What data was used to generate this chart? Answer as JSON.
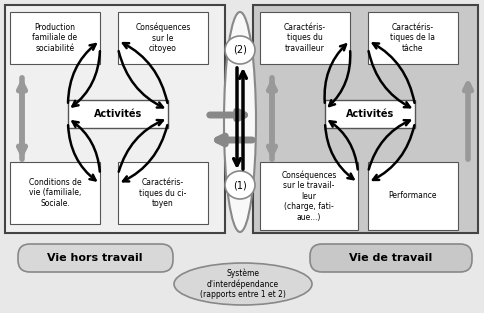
{
  "bg_color": "#e8e8e8",
  "left_panel_bg": "#f0f0f0",
  "right_panel_bg": "#c8c8c8",
  "box_bg": "#ffffff",
  "pill_bg": "#f8f8f8",
  "oval_bg": "#d8d8d8",
  "arrow_gray": "#909090",
  "arrow_black": "#111111",
  "border_dark": "#444444",
  "border_mid": "#888888",
  "left_panel_label": "Vie hors travail",
  "right_panel_label": "Vie de travail",
  "center_oval_label": "Système\nd'interdépendance\n(rapports entre 1 et 2)",
  "left_tl_text": "Production\nfamiliale de\nsociabilité",
  "left_tr_text": "Conséquences\nsur le\ncitoyeo",
  "left_ctr_text": "Activités",
  "left_bl_text": "Conditions de\nvie (familiale,\nSociale.",
  "left_br_text": "Caractéris-\ntiques du ci-\ntoyen",
  "right_tl_text": "Caractéris-\ntiques du\ntravailleur",
  "right_tr_text": "Caractéris-\ntiques de la\ntâche",
  "right_ctr_text": "Activités",
  "right_bl_text": "Conséquences\nsur le travail-\nleur\n(charge, fati-\naue...)",
  "right_br_text": "Performance",
  "circle1_label": "(1)",
  "circle2_label": "(2)"
}
